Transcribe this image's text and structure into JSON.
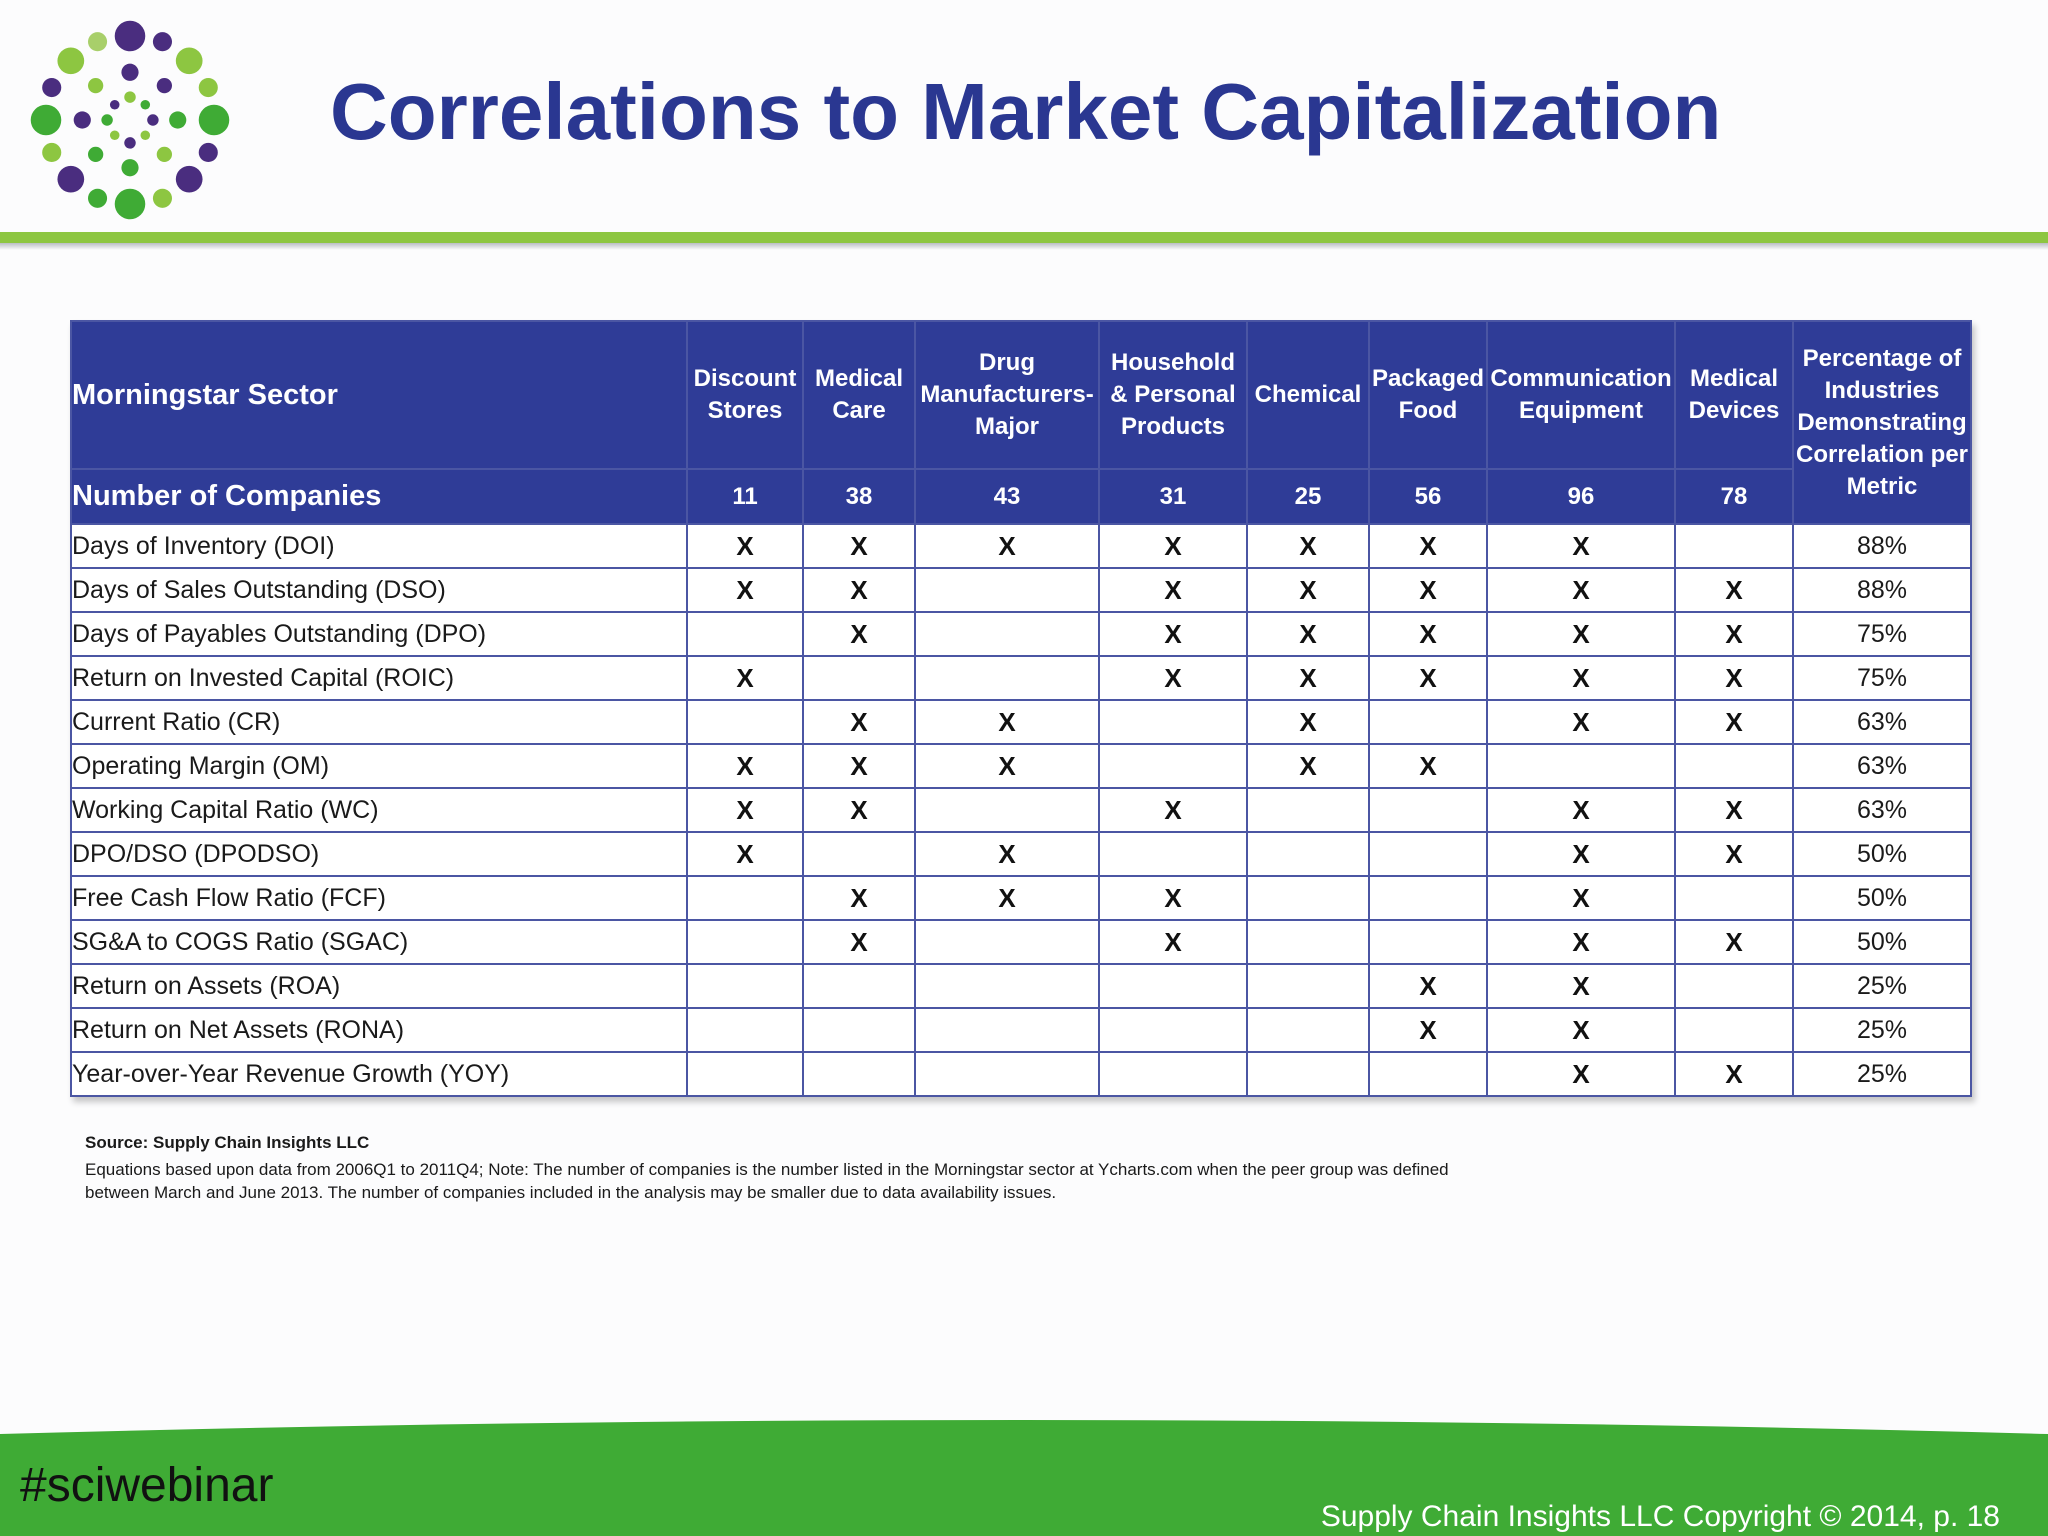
{
  "title": "Correlations to Market Capitalization",
  "colors": {
    "title": "#2a3791",
    "header_bg": "#2f3c97",
    "rule": "#8dc641",
    "footer": "#3fab35"
  },
  "table": {
    "sector_label": "Morningstar Sector",
    "companies_label": "Number of Companies",
    "columns": [
      {
        "name": "Discount Stores",
        "count": "11"
      },
      {
        "name": "Medical Care",
        "count": "38"
      },
      {
        "name": "Drug Manufacturers- Major",
        "count": "43"
      },
      {
        "name": "Household & Personal Products",
        "count": "31"
      },
      {
        "name": "Chemical",
        "count": "25"
      },
      {
        "name": "Packaged Food",
        "count": "56"
      },
      {
        "name": "Communication Equipment",
        "count": "96"
      },
      {
        "name": "Medical Devices",
        "count": "78"
      }
    ],
    "pct_header": "Percentage of Industries Demonstrating Correlation per Metric",
    "rows": [
      {
        "metric": "Days of Inventory (DOI)",
        "marks": [
          "X",
          "X",
          "X",
          "X",
          "X",
          "X",
          "X",
          ""
        ],
        "pct": "88%"
      },
      {
        "metric": "Days of Sales Outstanding (DSO)",
        "marks": [
          "X",
          "X",
          "",
          "X",
          "X",
          "X",
          "X",
          "X"
        ],
        "pct": "88%"
      },
      {
        "metric": "Days of Payables Outstanding (DPO)",
        "marks": [
          "",
          "X",
          "",
          "X",
          "X",
          "X",
          "X",
          "X"
        ],
        "pct": "75%"
      },
      {
        "metric": "Return on Invested Capital (ROIC)",
        "marks": [
          "X",
          "",
          "",
          "X",
          "X",
          "X",
          "X",
          "X"
        ],
        "pct": "75%"
      },
      {
        "metric": "Current Ratio (CR)",
        "marks": [
          "",
          "X",
          "X",
          "",
          "X",
          "",
          "X",
          "X"
        ],
        "pct": "63%"
      },
      {
        "metric": "Operating Margin (OM)",
        "marks": [
          "X",
          "X",
          "X",
          "",
          "X",
          "X",
          "",
          ""
        ],
        "pct": "63%"
      },
      {
        "metric": "Working Capital Ratio (WC)",
        "marks": [
          "X",
          "X",
          "",
          "X",
          "",
          "",
          "X",
          "X"
        ],
        "pct": "63%"
      },
      {
        "metric": "DPO/DSO (DPODSO)",
        "marks": [
          "X",
          "",
          "X",
          "",
          "",
          "",
          "X",
          "X"
        ],
        "pct": "50%"
      },
      {
        "metric": "Free Cash Flow Ratio (FCF)",
        "marks": [
          "",
          "X",
          "X",
          "X",
          "",
          "",
          "X",
          ""
        ],
        "pct": "50%"
      },
      {
        "metric": "SG&A to COGS Ratio (SGAC)",
        "marks": [
          "",
          "X",
          "",
          "X",
          "",
          "",
          "X",
          "X"
        ],
        "pct": "50%"
      },
      {
        "metric": "Return on Assets (ROA)",
        "marks": [
          "",
          "",
          "",
          "",
          "",
          "X",
          "X",
          ""
        ],
        "pct": "25%"
      },
      {
        "metric": "Return on Net Assets (RONA)",
        "marks": [
          "",
          "",
          "",
          "",
          "",
          "X",
          "X",
          ""
        ],
        "pct": "25%"
      },
      {
        "metric": "Year-over-Year Revenue Growth (YOY)",
        "marks": [
          "",
          "",
          "",
          "",
          "",
          "",
          "X",
          "X"
        ],
        "pct": "25%"
      }
    ]
  },
  "source": "Source: Supply Chain Insights LLC",
  "note": "Equations based upon data from 2006Q1 to 2011Q4; Note: The number of companies is the number listed in the Morningstar sector at Ycharts.com when the peer group was defined between March and June 2013. The number of companies included in the analysis may be smaller due to data availability issues.",
  "footer": {
    "hashtag": "#sciwebinar",
    "copyright": "Supply Chain Insights LLC Copyright © 2014, p. 18"
  }
}
